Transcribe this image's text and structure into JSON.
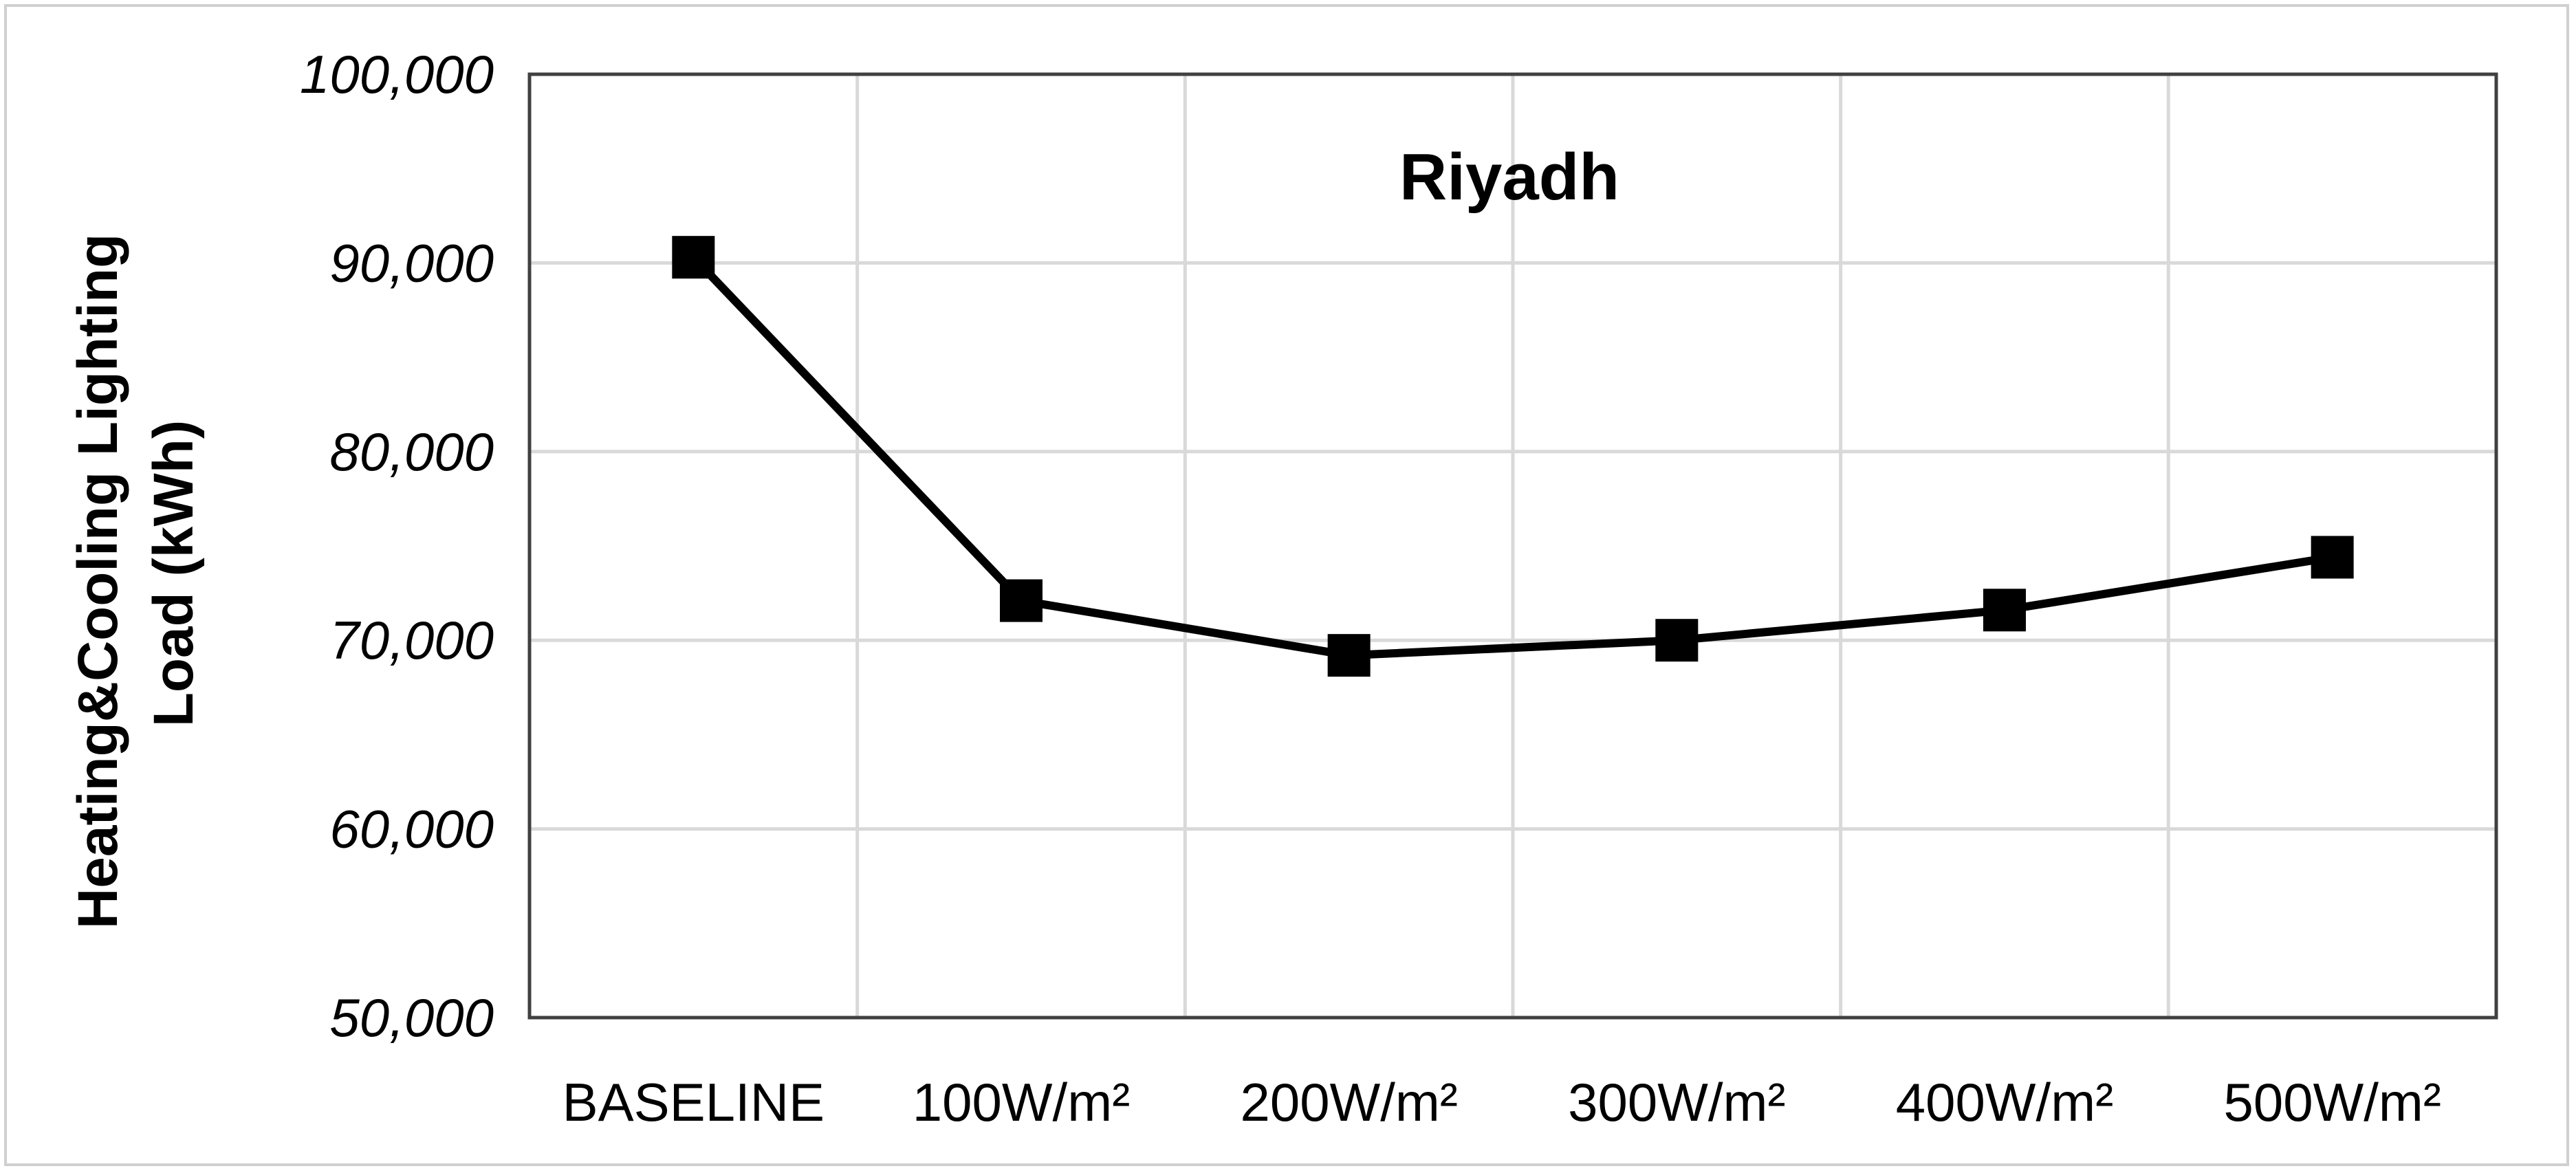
{
  "chart_data": {
    "type": "line",
    "title": "Riyadh",
    "ylabel_lines": [
      "Heating&Cooling Lighting",
      "Load (kWh)"
    ],
    "xlabel": "",
    "categories": [
      "BASELINE",
      "100W/m²",
      "200W/m²",
      "300W/m²",
      "400W/m²",
      "500W/m²"
    ],
    "series": [
      {
        "values": [
          90300,
          72100,
          69200,
          70000,
          71600,
          74400
        ]
      }
    ],
    "ylim": [
      50000,
      100000
    ],
    "yticks": [
      50000,
      60000,
      70000,
      80000,
      90000,
      100000
    ],
    "ytick_labels": [
      "50,000",
      "60,000",
      "70,000",
      "80,000",
      "90,000",
      "100,000"
    ],
    "grid": true,
    "legend": "none",
    "colors": {
      "line": "#000000",
      "grid": "#d9d9d9",
      "axis": "#404040"
    }
  }
}
